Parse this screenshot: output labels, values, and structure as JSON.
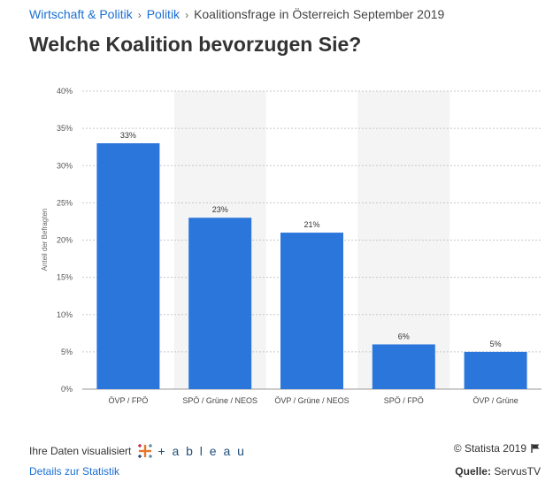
{
  "breadcrumb": {
    "items": [
      "Wirtschaft & Politik",
      "Politik"
    ],
    "separator": "›",
    "current": "Koalitionsfrage in Österreich September 2019"
  },
  "title": "Welche Koalition bevorzugen Sie?",
  "colors": {
    "bar": "#2b76db",
    "band": "#f4f4f4",
    "link": "#1a6fd4"
  },
  "chart_data": {
    "type": "bar",
    "title": "Welche Koalition bevorzugen Sie?",
    "xlabel": "",
    "ylabel": "Anteil der Befragten",
    "categories": [
      "ÖVP / FPÖ",
      "SPÖ / Grüne / NEOS",
      "ÖVP / Grüne / NEOS",
      "SPÖ / FPÖ",
      "ÖVP / Grüne"
    ],
    "values": [
      33,
      23,
      21,
      6,
      5
    ],
    "value_labels": [
      "33%",
      "23%",
      "21%",
      "6%",
      "5%"
    ],
    "ylim": [
      0,
      40
    ],
    "yticks": [
      0,
      5,
      10,
      15,
      20,
      25,
      30,
      35,
      40
    ],
    "ytick_labels": [
      "0%",
      "5%",
      "10%",
      "15%",
      "20%",
      "25%",
      "30%",
      "35%",
      "40%"
    ],
    "grid": true
  },
  "footer": {
    "visualized_label": "Ihre Daten visualisiert",
    "tableau_text": "+ a b l e a u",
    "details_link": "Details zur Statistik",
    "copyright": "© Statista 2019",
    "source_label": "Quelle:",
    "source_value": "ServusTV"
  }
}
